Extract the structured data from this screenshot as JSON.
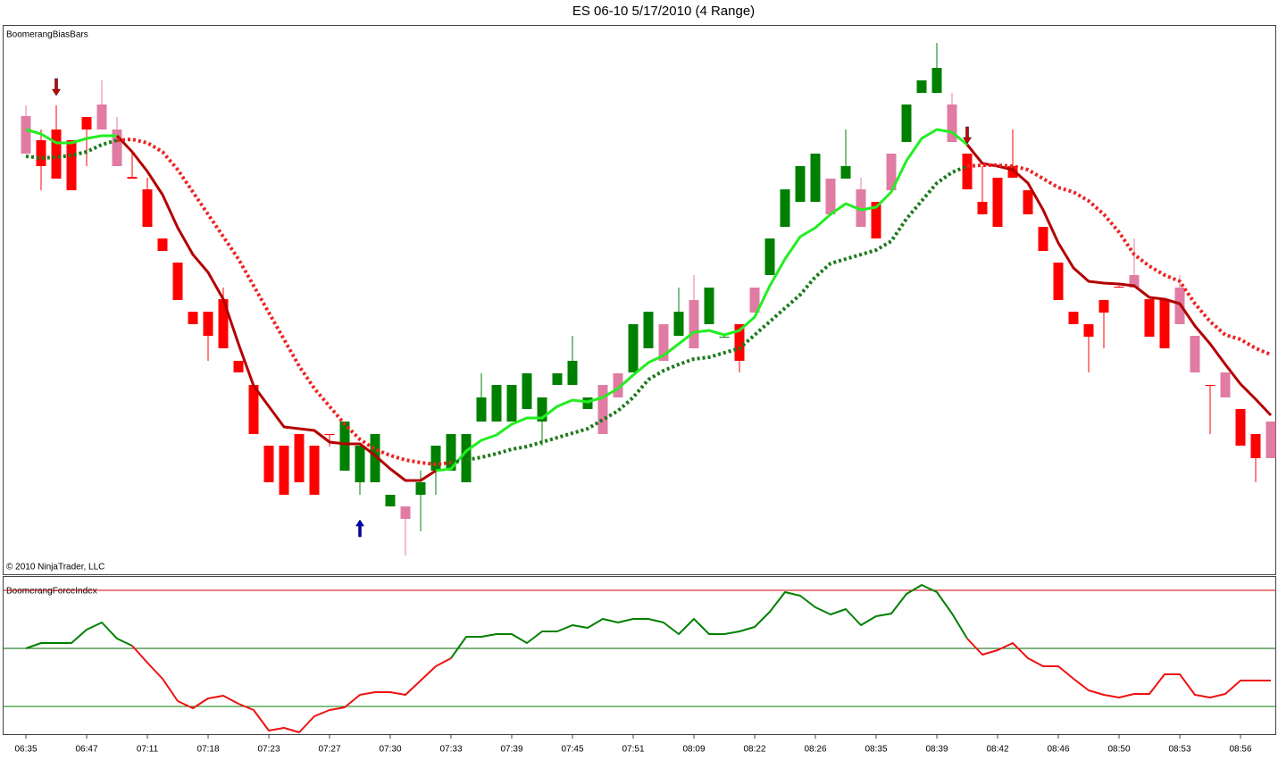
{
  "title": "ES 06-10  5/17/2010 (4 Range)",
  "copyright": "© 2010 NinjaTrader, LLC",
  "chart_data": [
    {
      "type": "candlestick",
      "title": "BoomerangBiasBars",
      "categories": [
        "06:35",
        null,
        null,
        null,
        "06:47",
        null,
        null,
        null,
        "07:11",
        null,
        null,
        null,
        "07:18",
        null,
        null,
        null,
        "07:23",
        null,
        null,
        null,
        "07:27",
        null,
        null,
        null,
        "07:30",
        null,
        null,
        null,
        "07:33",
        null,
        null,
        null,
        "07:39",
        null,
        null,
        null,
        "07:45",
        null,
        null,
        null,
        "07:51",
        null,
        null,
        null,
        "08:09",
        null,
        null,
        null,
        "08:22",
        null,
        null,
        null,
        "08:26",
        null,
        null,
        null,
        "08:35",
        null,
        null,
        null,
        "08:39",
        null,
        null,
        null,
        "08:42",
        null,
        null,
        null,
        "08:46",
        null,
        null,
        null,
        "08:50",
        null,
        null,
        null,
        "08:53",
        null,
        null,
        null,
        "08:56",
        null,
        null
      ],
      "open": [
        470,
        485,
        497,
        485,
        511,
        497,
        456,
        444,
        430,
        375,
        348,
        293,
        293,
        307,
        238,
        211,
        143,
        143,
        156,
        143,
        156,
        115,
        102,
        102,
        75,
        61,
        88,
        115,
        115,
        102,
        170,
        170,
        170,
        184,
        170,
        211,
        211,
        184,
        156,
        197,
        225,
        252,
        238,
        266,
        252,
        279,
        264,
        279,
        292,
        334,
        388,
        416,
        416,
        402,
        442,
        388,
        416,
        429,
        483,
        538,
        538,
        483,
        470,
        416,
        443,
        456,
        429,
        388,
        348,
        293,
        279,
        306,
        321,
        320,
        307,
        307,
        279,
        225,
        211,
        197,
        184,
        156,
        129
      ],
      "high": [
        524,
        497,
        524,
        485,
        511,
        552,
        511,
        470,
        443,
        375,
        348,
        293,
        293,
        320,
        238,
        211,
        143,
        143,
        156,
        143,
        156,
        170,
        143,
        156,
        88,
        75,
        115,
        143,
        156,
        156,
        224,
        211,
        211,
        224,
        197,
        224,
        266,
        197,
        211,
        224,
        279,
        293,
        279,
        320,
        334,
        320,
        266,
        279,
        320,
        375,
        430,
        456,
        470,
        442,
        497,
        443,
        416,
        470,
        525,
        552,
        594,
        538,
        470,
        456,
        443,
        497,
        429,
        388,
        348,
        293,
        279,
        306,
        322,
        375,
        307,
        307,
        334,
        266,
        211,
        225,
        184,
        156,
        170
      ],
      "low": [
        470,
        429,
        442,
        429,
        456,
        497,
        456,
        442,
        388,
        361,
        306,
        279,
        238,
        252,
        225,
        156,
        102,
        88,
        102,
        88,
        142,
        115,
        88,
        102,
        75,
        20,
        47,
        88,
        115,
        102,
        170,
        170,
        170,
        184,
        143,
        211,
        211,
        184,
        156,
        197,
        225,
        252,
        238,
        266,
        252,
        279,
        264,
        225,
        292,
        334,
        388,
        416,
        416,
        402,
        442,
        388,
        375,
        429,
        483,
        538,
        538,
        483,
        430,
        402,
        388,
        443,
        402,
        361,
        306,
        279,
        225,
        252,
        320,
        320,
        265,
        252,
        279,
        225,
        156,
        197,
        143,
        102,
        129
      ],
      "close": [
        512,
        456,
        442,
        429,
        497,
        525,
        497,
        442,
        388,
        361,
        306,
        279,
        266,
        252,
        225,
        156,
        102,
        88,
        102,
        88,
        155,
        170,
        143,
        156,
        88,
        75,
        102,
        143,
        156,
        156,
        197,
        211,
        211,
        224,
        197,
        224,
        238,
        197,
        211,
        224,
        279,
        293,
        279,
        293,
        306,
        320,
        265,
        238,
        320,
        375,
        430,
        456,
        470,
        442,
        456,
        430,
        375,
        470,
        525,
        552,
        566,
        525,
        430,
        402,
        388,
        443,
        402,
        361,
        306,
        279,
        265,
        292,
        320,
        334,
        265,
        252,
        320,
        266,
        210,
        225,
        143,
        129,
        170
      ],
      "colors": [
        "#e07ca3",
        "#ff0000",
        "#ff0000",
        "#ff0000",
        "#ff0000",
        "#e07ca3",
        "#e07ca3",
        "#ff0000",
        "#ff0000",
        "#ff0000",
        "#ff0000",
        "#ff0000",
        "#ff0000",
        "#ff0000",
        "#ff0000",
        "#ff0000",
        "#ff0000",
        "#ff0000",
        "#ff0000",
        "#ff0000",
        "#ff0000",
        "#008000",
        "#008000",
        "#008000",
        "#008000",
        "#e07ca3",
        "#008000",
        "#008000",
        "#008000",
        "#008000",
        "#008000",
        "#008000",
        "#008000",
        "#008000",
        "#008000",
        "#008000",
        "#008000",
        "#008000",
        "#e07ca3",
        "#e07ca3",
        "#008000",
        "#008000",
        "#e07ca3",
        "#008000",
        "#e07ca3",
        "#008000",
        "#008000",
        "#ff0000",
        "#e07ca3",
        "#008000",
        "#008000",
        "#008000",
        "#008000",
        "#e07ca3",
        "#008000",
        "#e07ca3",
        "#ff0000",
        "#e07ca3",
        "#008000",
        "#008000",
        "#008000",
        "#e07ca3",
        "#ff0000",
        "#ff0000",
        "#ff0000",
        "#ff0000",
        "#ff0000",
        "#ff0000",
        "#ff0000",
        "#ff0000",
        "#ff0000",
        "#ff0000",
        "#ff0000",
        "#e07ca3",
        "#ff0000",
        "#ff0000",
        "#e07ca3",
        "#e07ca3",
        "#ff0000",
        "#e07ca3",
        "#ff0000",
        "#ff0000",
        "#e07ca3"
      ],
      "lines": [
        {
          "color": "#22ee22",
          "dashed": false,
          "values": [
            497,
            492,
            482,
            482,
            487,
            490,
            490,
            null,
            null,
            null,
            null,
            null,
            null,
            null,
            null,
            null,
            null,
            null,
            null,
            null,
            null,
            null,
            null,
            null,
            null,
            null,
            null,
            115,
            117,
            137,
            149,
            155,
            167,
            174,
            174,
            187,
            194,
            192,
            197,
            207,
            222,
            236,
            244,
            257,
            270,
            272,
            267,
            272,
            287,
            322,
            352,
            377,
            387,
            402,
            414,
            407,
            410,
            427,
            462,
            487,
            497,
            494,
            480,
            null,
            null,
            null,
            null,
            null,
            null,
            null,
            null,
            null,
            null,
            null,
            null,
            null,
            null,
            null,
            null,
            null,
            null,
            null,
            null
          ]
        },
        {
          "color": "#b40000",
          "dashed": false,
          "values": [
            null,
            null,
            null,
            null,
            null,
            null,
            490,
            472,
            450,
            424,
            387,
            357,
            337,
            307,
            257,
            210,
            187,
            164,
            162,
            160,
            147,
            145,
            145,
            132,
            117,
            104,
            104,
            115,
            null,
            null,
            null,
            null,
            null,
            null,
            null,
            null,
            null,
            null,
            null,
            null,
            null,
            null,
            null,
            null,
            null,
            null,
            null,
            null,
            null,
            null,
            null,
            null,
            null,
            null,
            null,
            null,
            null,
            null,
            null,
            null,
            null,
            null,
            480,
            459,
            456,
            452,
            437,
            407,
            370,
            342,
            327,
            325,
            324,
            322,
            309,
            307,
            302,
            277,
            257,
            234,
            212,
            195,
            177
          ]
        },
        {
          "color": "#1a7a1a",
          "dashed": true,
          "values": [
            467,
            465,
            466,
            468,
            472,
            480,
            485,
            null,
            null,
            null,
            null,
            null,
            null,
            null,
            null,
            null,
            null,
            null,
            null,
            null,
            null,
            null,
            null,
            null,
            null,
            null,
            null,
            null,
            124,
            127,
            130,
            134,
            139,
            142,
            147,
            152,
            157,
            162,
            172,
            182,
            197,
            217,
            227,
            234,
            240,
            242,
            247,
            252,
            267,
            282,
            297,
            312,
            332,
            347,
            352,
            357,
            362,
            372,
            397,
            417,
            437,
            449,
            456,
            null,
            null,
            null,
            null,
            null,
            null,
            null,
            null,
            null,
            null,
            null,
            null,
            null,
            null,
            null,
            null,
            null,
            null,
            null,
            null
          ]
        },
        {
          "color": "#ee2222",
          "dashed": true,
          "values": [
            null,
            null,
            null,
            null,
            null,
            null,
            485,
            486,
            482,
            472,
            452,
            427,
            402,
            377,
            352,
            322,
            292,
            262,
            232,
            207,
            187,
            167,
            150,
            139,
            132,
            127,
            124,
            122,
            124,
            null,
            null,
            null,
            null,
            null,
            null,
            null,
            null,
            null,
            null,
            null,
            null,
            null,
            null,
            null,
            null,
            null,
            null,
            null,
            null,
            null,
            null,
            null,
            null,
            null,
            null,
            null,
            null,
            null,
            null,
            null,
            null,
            null,
            456,
            457,
            457,
            456,
            452,
            442,
            432,
            427,
            417,
            402,
            382,
            357,
            344,
            334,
            327,
            302,
            282,
            267,
            262,
            252,
            245
          ]
        }
      ],
      "markers": [
        {
          "index": 2,
          "direction": "down",
          "color": "#cc0000"
        },
        {
          "index": 22,
          "direction": "up",
          "color": "#0000cc"
        },
        {
          "index": 62,
          "direction": "down",
          "color": "#cc0000"
        }
      ],
      "ylim": [
        0,
        614
      ]
    },
    {
      "type": "line",
      "title": "BoomerangForceIndex",
      "series": [
        {
          "color": "#008000",
          "values": [
            0,
            6,
            6,
            6,
            21,
            29,
            11,
            3,
            null,
            null,
            null,
            null,
            null,
            null,
            null,
            null,
            null,
            null,
            null,
            null,
            null,
            null,
            null,
            null,
            null,
            null,
            null,
            null,
            -11,
            13,
            13,
            16,
            16,
            6,
            19,
            19,
            26,
            23,
            33,
            29,
            33,
            33,
            29,
            16,
            33,
            16,
            16,
            19,
            24,
            41,
            63,
            59,
            46,
            38,
            44,
            26,
            36,
            39,
            61,
            71,
            63,
            39,
            11,
            null,
            null,
            null,
            null,
            null,
            null,
            null,
            null,
            null,
            null,
            null,
            null,
            null,
            null,
            null,
            null,
            null,
            null,
            null,
            null
          ]
        },
        {
          "color": "#ee1111",
          "values": [
            null,
            null,
            null,
            null,
            null,
            null,
            null,
            3,
            -16,
            -34,
            -59,
            -67,
            -56,
            -53,
            -62,
            -69,
            -92,
            -89,
            -94,
            -76,
            -69,
            -66,
            -52,
            -49,
            -49,
            -52,
            -36,
            -20,
            -11,
            null,
            null,
            null,
            null,
            null,
            null,
            null,
            null,
            null,
            null,
            null,
            null,
            null,
            null,
            null,
            null,
            null,
            null,
            null,
            null,
            null,
            null,
            null,
            null,
            null,
            null,
            null,
            null,
            null,
            null,
            null,
            null,
            null,
            11,
            -7,
            -2,
            6,
            -11,
            -20,
            -20,
            -34,
            -47,
            -52,
            -55,
            -51,
            -51,
            -29,
            -29,
            -52,
            -55,
            -51,
            -36,
            -36,
            -36
          ]
        }
      ],
      "levels": [
        {
          "value": 65,
          "color": "#cc0000"
        },
        {
          "value": 0,
          "color": "#006400"
        },
        {
          "value": -65,
          "color": "#008000"
        }
      ],
      "ylim": [
        -96,
        81
      ]
    }
  ]
}
